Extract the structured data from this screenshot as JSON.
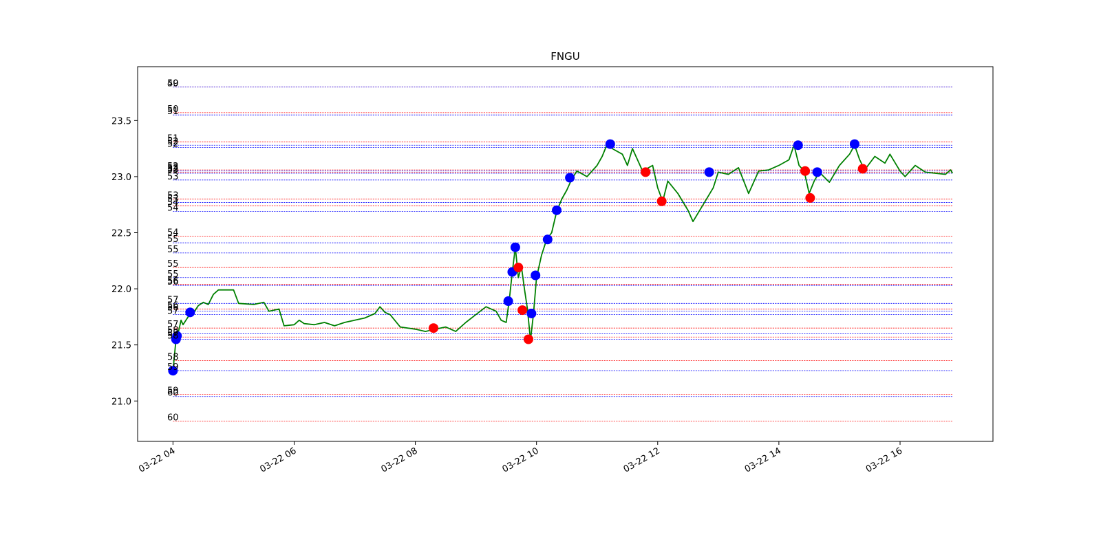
{
  "chart_data": {
    "type": "line",
    "title": "FNGU",
    "xlabel": "",
    "ylabel": "",
    "x_ticks": [
      "03-22 04",
      "03-22 06",
      "03-22 08",
      "03-22 10",
      "03-22 12",
      "03-22 14",
      "03-22 16"
    ],
    "y_ticks": [
      "21.0",
      "21.5",
      "22.0",
      "22.5",
      "23.0",
      "23.5"
    ],
    "xlim": [
      "03-22 03:25",
      "03-22 17:32"
    ],
    "ylim": [
      20.64,
      23.98
    ],
    "grid": false,
    "series": [
      {
        "color": "#008000",
        "points": [
          [
            "04:00",
            21.27
          ],
          [
            "04:03",
            21.55
          ],
          [
            "04:05",
            21.6
          ],
          [
            "04:08",
            21.72
          ],
          [
            "04:10",
            21.68
          ],
          [
            "04:15",
            21.75
          ],
          [
            "04:20",
            21.78
          ],
          [
            "04:25",
            21.85
          ],
          [
            "04:30",
            21.88
          ],
          [
            "04:35",
            21.86
          ],
          [
            "04:40",
            21.95
          ],
          [
            "04:45",
            21.99
          ],
          [
            "05:00",
            21.99
          ],
          [
            "05:05",
            21.87
          ],
          [
            "05:20",
            21.86
          ],
          [
            "05:30",
            21.88
          ],
          [
            "05:35",
            21.8
          ],
          [
            "05:45",
            21.82
          ],
          [
            "05:50",
            21.67
          ],
          [
            "06:00",
            21.68
          ],
          [
            "06:05",
            21.72
          ],
          [
            "06:10",
            21.69
          ],
          [
            "06:20",
            21.68
          ],
          [
            "06:30",
            21.7
          ],
          [
            "06:40",
            21.67
          ],
          [
            "06:50",
            21.7
          ],
          [
            "07:00",
            21.72
          ],
          [
            "07:10",
            21.74
          ],
          [
            "07:20",
            21.78
          ],
          [
            "07:25",
            21.84
          ],
          [
            "07:30",
            21.79
          ],
          [
            "07:35",
            21.77
          ],
          [
            "07:45",
            21.66
          ],
          [
            "08:00",
            21.64
          ],
          [
            "08:10",
            21.62
          ],
          [
            "08:20",
            21.64
          ],
          [
            "08:30",
            21.66
          ],
          [
            "08:40",
            21.62
          ],
          [
            "08:50",
            21.7
          ],
          [
            "09:00",
            21.77
          ],
          [
            "09:10",
            21.84
          ],
          [
            "09:20",
            21.8
          ],
          [
            "09:25",
            21.72
          ],
          [
            "09:30",
            21.7
          ],
          [
            "09:33",
            21.9
          ],
          [
            "09:36",
            22.15
          ],
          [
            "09:39",
            22.37
          ],
          [
            "09:42",
            22.1
          ],
          [
            "09:45",
            22.2
          ],
          [
            "09:48",
            22.0
          ],
          [
            "09:51",
            21.82
          ],
          [
            "09:54",
            21.54
          ],
          [
            "09:57",
            21.78
          ],
          [
            "10:00",
            22.1
          ],
          [
            "10:05",
            22.3
          ],
          [
            "10:10",
            22.44
          ],
          [
            "10:15",
            22.5
          ],
          [
            "10:20",
            22.69
          ],
          [
            "10:25",
            22.8
          ],
          [
            "10:30",
            22.88
          ],
          [
            "10:35",
            22.98
          ],
          [
            "10:40",
            23.05
          ],
          [
            "10:50",
            23.0
          ],
          [
            "11:00",
            23.1
          ],
          [
            "11:05",
            23.18
          ],
          [
            "11:10",
            23.29
          ],
          [
            "11:15",
            23.25
          ],
          [
            "11:25",
            23.2
          ],
          [
            "11:30",
            23.1
          ],
          [
            "11:35",
            23.25
          ],
          [
            "11:45",
            23.05
          ],
          [
            "11:55",
            23.1
          ],
          [
            "12:00",
            22.9
          ],
          [
            "12:05",
            22.78
          ],
          [
            "12:10",
            22.96
          ],
          [
            "12:20",
            22.85
          ],
          [
            "12:30",
            22.7
          ],
          [
            "12:35",
            22.6
          ],
          [
            "12:45",
            22.75
          ],
          [
            "12:55",
            22.9
          ],
          [
            "13:00",
            23.04
          ],
          [
            "13:10",
            23.02
          ],
          [
            "13:20",
            23.08
          ],
          [
            "13:30",
            22.85
          ],
          [
            "13:40",
            23.05
          ],
          [
            "13:50",
            23.06
          ],
          [
            "14:00",
            23.1
          ],
          [
            "14:10",
            23.15
          ],
          [
            "14:15",
            23.28
          ],
          [
            "14:20",
            23.1
          ],
          [
            "14:25",
            23.05
          ],
          [
            "14:30",
            22.85
          ],
          [
            "14:35",
            22.96
          ],
          [
            "14:40",
            23.04
          ],
          [
            "14:50",
            22.95
          ],
          [
            "15:00",
            23.1
          ],
          [
            "15:10",
            23.2
          ],
          [
            "15:15",
            23.28
          ],
          [
            "15:20",
            23.15
          ],
          [
            "15:25",
            23.06
          ],
          [
            "15:35",
            23.18
          ],
          [
            "15:45",
            23.12
          ],
          [
            "15:50",
            23.2
          ],
          [
            "16:00",
            23.05
          ],
          [
            "16:05",
            23.0
          ],
          [
            "16:15",
            23.1
          ],
          [
            "16:25",
            23.04
          ],
          [
            "16:35",
            23.03
          ],
          [
            "16:45",
            23.02
          ],
          [
            "16:50",
            23.06
          ],
          [
            "16:52",
            23.03
          ]
        ]
      }
    ],
    "markers": [
      {
        "x": "04:00",
        "y": 21.27,
        "color": "#0000ff"
      },
      {
        "x": "04:03",
        "y": 21.55,
        "color": "#0000ff"
      },
      {
        "x": "04:04",
        "y": 21.58,
        "color": "#0000ff"
      },
      {
        "x": "04:17",
        "y": 21.79,
        "color": "#0000ff"
      },
      {
        "x": "08:18",
        "y": 21.65,
        "color": "#ff0000"
      },
      {
        "x": "09:32",
        "y": 21.89,
        "color": "#0000ff"
      },
      {
        "x": "09:36",
        "y": 22.15,
        "color": "#0000ff"
      },
      {
        "x": "09:39",
        "y": 22.37,
        "color": "#0000ff"
      },
      {
        "x": "09:42",
        "y": 22.19,
        "color": "#ff0000"
      },
      {
        "x": "09:46",
        "y": 21.81,
        "color": "#ff0000"
      },
      {
        "x": "09:52",
        "y": 21.55,
        "color": "#ff0000"
      },
      {
        "x": "09:55",
        "y": 21.78,
        "color": "#0000ff"
      },
      {
        "x": "09:59",
        "y": 22.12,
        "color": "#0000ff"
      },
      {
        "x": "10:11",
        "y": 22.44,
        "color": "#0000ff"
      },
      {
        "x": "10:20",
        "y": 22.7,
        "color": "#0000ff"
      },
      {
        "x": "10:33",
        "y": 22.99,
        "color": "#0000ff"
      },
      {
        "x": "11:13",
        "y": 23.29,
        "color": "#0000ff"
      },
      {
        "x": "11:48",
        "y": 23.04,
        "color": "#ff0000"
      },
      {
        "x": "12:04",
        "y": 22.78,
        "color": "#ff0000"
      },
      {
        "x": "12:51",
        "y": 23.04,
        "color": "#0000ff"
      },
      {
        "x": "14:19",
        "y": 23.28,
        "color": "#0000ff"
      },
      {
        "x": "14:26",
        "y": 23.05,
        "color": "#ff0000"
      },
      {
        "x": "14:31",
        "y": 22.81,
        "color": "#ff0000"
      },
      {
        "x": "14:38",
        "y": 23.04,
        "color": "#0000ff"
      },
      {
        "x": "15:15",
        "y": 23.29,
        "color": "#0000ff"
      },
      {
        "x": "15:23",
        "y": 23.07,
        "color": "#ff0000"
      }
    ],
    "levels": [
      {
        "label": "50",
        "y": 23.8,
        "color": "#ff0000"
      },
      {
        "label": "49",
        "y": 23.8,
        "color": "#0000ff"
      },
      {
        "label": "50",
        "y": 23.57,
        "color": "#ff0000"
      },
      {
        "label": "51",
        "y": 23.55,
        "color": "#0000ff"
      },
      {
        "label": "51",
        "y": 23.31,
        "color": "#ff0000"
      },
      {
        "label": "52",
        "y": 23.28,
        "color": "#0000ff"
      },
      {
        "label": "52",
        "y": 23.26,
        "color": "#0000ff"
      },
      {
        "label": "52",
        "y": 23.06,
        "color": "#ff0000"
      },
      {
        "label": "53",
        "y": 23.05,
        "color": "#0000ff"
      },
      {
        "label": "52",
        "y": 23.04,
        "color": "#ff0000"
      },
      {
        "label": "53",
        "y": 23.03,
        "color": "#0000ff"
      },
      {
        "label": "53",
        "y": 22.97,
        "color": "#0000ff"
      },
      {
        "label": "53",
        "y": 22.8,
        "color": "#ff0000"
      },
      {
        "label": "53",
        "y": 22.77,
        "color": "#0000ff"
      },
      {
        "label": "54",
        "y": 22.74,
        "color": "#ff0000"
      },
      {
        "label": "54",
        "y": 22.69,
        "color": "#0000ff"
      },
      {
        "label": "54",
        "y": 22.47,
        "color": "#ff0000"
      },
      {
        "label": "55",
        "y": 22.41,
        "color": "#0000ff"
      },
      {
        "label": "55",
        "y": 22.32,
        "color": "#0000ff"
      },
      {
        "label": "55",
        "y": 22.19,
        "color": "#ff0000"
      },
      {
        "label": "55",
        "y": 22.1,
        "color": "#0000ff"
      },
      {
        "label": "56",
        "y": 22.04,
        "color": "#ff0000"
      },
      {
        "label": "56",
        "y": 22.03,
        "color": "#0000ff"
      },
      {
        "label": "57",
        "y": 21.87,
        "color": "#0000ff"
      },
      {
        "label": "56",
        "y": 21.82,
        "color": "#ff0000"
      },
      {
        "label": "56",
        "y": 21.8,
        "color": "#0000ff"
      },
      {
        "label": "57",
        "y": 21.77,
        "color": "#0000ff"
      },
      {
        "label": "57",
        "y": 21.65,
        "color": "#ff0000"
      },
      {
        "label": "58",
        "y": 21.6,
        "color": "#0000ff"
      },
      {
        "label": "57",
        "y": 21.57,
        "color": "#ff0000"
      },
      {
        "label": "58",
        "y": 21.55,
        "color": "#0000ff"
      },
      {
        "label": "58",
        "y": 21.36,
        "color": "#ff0000"
      },
      {
        "label": "59",
        "y": 21.27,
        "color": "#0000ff"
      },
      {
        "label": "59",
        "y": 21.06,
        "color": "#ff0000"
      },
      {
        "label": "60",
        "y": 21.04,
        "color": "#0000ff"
      },
      {
        "label": "60",
        "y": 20.82,
        "color": "#ff0000"
      }
    ]
  }
}
